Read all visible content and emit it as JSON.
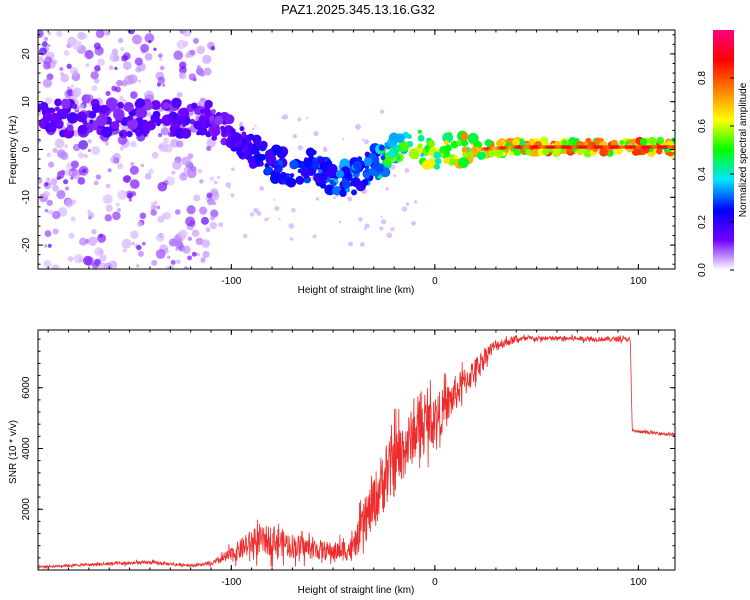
{
  "title": "PAZ1.2025.345.13.16.G32",
  "chart_data": [
    {
      "type": "heatmap",
      "name": "spectrogram",
      "title": "PAZ1.2025.345.13.16.G32",
      "xlabel": "Height of straight line (km)",
      "ylabel": "Frequency (Hz)",
      "xlim": [
        -195,
        118
      ],
      "ylim": [
        -25,
        25
      ],
      "xticks": [
        -100,
        0,
        100
      ],
      "yticks": [
        -20,
        -10,
        0,
        10,
        20
      ],
      "colorbar": {
        "label": "Normalized spectral amplitude",
        "range": [
          0,
          1
        ],
        "ticks": [
          "0.0",
          "0.2",
          "0.4",
          "0.6",
          "0.8"
        ],
        "colormap": [
          "#ffffff",
          "#7000ff",
          "#0000ff",
          "#00e5ff",
          "#00ff00",
          "#ffff00",
          "#ff7f00",
          "#ff0000",
          "#ff0080"
        ]
      },
      "ridge": {
        "height_km": [
          -110,
          -100,
          -90,
          -80,
          -70,
          -60,
          -50,
          -40,
          -30,
          -25,
          -20,
          -15,
          -10,
          -5,
          0,
          5,
          10,
          20,
          40,
          60,
          80,
          100,
          118
        ],
        "frequency_hz": [
          6,
          3,
          0,
          -3,
          -4,
          -3,
          -6,
          -6,
          -3,
          -2,
          0,
          1,
          2,
          0,
          -1,
          1,
          0,
          0,
          0.5,
          0.5,
          0.5,
          0.5,
          0.5
        ],
        "amplitude": [
          0.15,
          0.2,
          0.25,
          0.3,
          0.3,
          0.3,
          0.35,
          0.35,
          0.35,
          0.5,
          0.6,
          0.6,
          0.65,
          0.65,
          0.65,
          0.7,
          0.75,
          0.75,
          0.8,
          0.85,
          0.85,
          0.85,
          0.85
        ]
      }
    },
    {
      "type": "line",
      "name": "snr",
      "xlabel": "Height of straight line (km)",
      "ylabel": "SNR (10 * v/v)",
      "xlim": [
        -195,
        118
      ],
      "ylim": [
        0,
        7900
      ],
      "xticks": [
        -100,
        0,
        100
      ],
      "yticks": [
        2000,
        4000,
        6000
      ],
      "color": "#ee2c2c",
      "series": [
        {
          "name": "SNR",
          "x": [
            -195,
            -180,
            -160,
            -140,
            -120,
            -110,
            -100,
            -90,
            -80,
            -70,
            -60,
            -50,
            -40,
            -35,
            -30,
            -25,
            -20,
            -15,
            -10,
            -5,
            0,
            5,
            10,
            15,
            20,
            25,
            30,
            40,
            50,
            60,
            70,
            80,
            90,
            96,
            97,
            100,
            110,
            118
          ],
          "y": [
            100,
            150,
            200,
            250,
            150,
            200,
            500,
            900,
            1000,
            800,
            700,
            600,
            700,
            1500,
            2200,
            3000,
            3500,
            4000,
            4500,
            4800,
            5000,
            5300,
            5800,
            6200,
            6600,
            7100,
            7400,
            7600,
            7620,
            7620,
            7620,
            7600,
            7600,
            7600,
            4600,
            4550,
            4500,
            4450
          ],
          "noise": [
            40,
            40,
            60,
            60,
            40,
            60,
            250,
            450,
            500,
            400,
            350,
            300,
            400,
            700,
            900,
            1100,
            1100,
            1000,
            900,
            850,
            800,
            700,
            600,
            500,
            400,
            300,
            200,
            100,
            80,
            80,
            80,
            80,
            80,
            80,
            50,
            50,
            50,
            50
          ]
        }
      ]
    }
  ]
}
